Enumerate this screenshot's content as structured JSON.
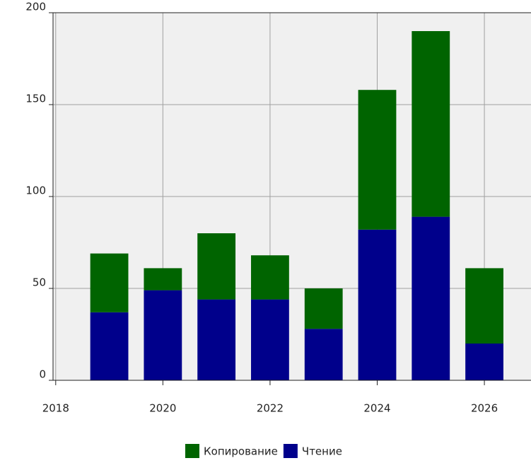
{
  "chart_data": {
    "type": "stacked_bar",
    "x": [
      2019,
      2020,
      2021,
      2022,
      2023,
      2024,
      2025,
      2026
    ],
    "series": [
      {
        "name": "Копирование",
        "color": "#006400",
        "values": [
          32,
          12,
          36,
          24,
          22,
          76,
          101,
          41
        ]
      },
      {
        "name": "Чтение",
        "color": "#00008b",
        "values": [
          37,
          49,
          44,
          44,
          28,
          82,
          89,
          20
        ]
      }
    ],
    "xlim": [
      2017.95,
      2026.87
    ],
    "xticks": [
      2018,
      2020,
      2022,
      2024,
      2026
    ],
    "ylim": [
      0,
      200
    ],
    "yticks": [
      0,
      50,
      100,
      150,
      200
    ],
    "grid": true,
    "legend": "bottom"
  }
}
